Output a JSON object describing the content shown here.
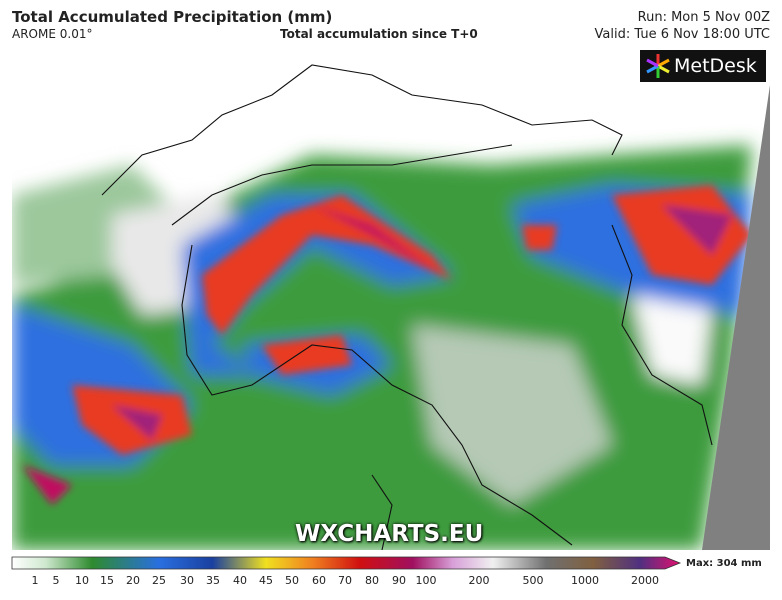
{
  "header": {
    "title": "Total Accumulated Precipitation (mm)",
    "model": "AROME 0.01°",
    "subtitle": "Total accumulation since T+0",
    "run": "Run: Mon 5 Nov 00Z",
    "valid": "Valid: Tue 6 Nov 18:00 UTC"
  },
  "logo": "MetDesk",
  "watermark": "WXCHARTS.EU",
  "legend": {
    "labels": [
      "1",
      "5",
      "10",
      "15",
      "20",
      "25",
      "30",
      "35",
      "40",
      "45",
      "50",
      "60",
      "70",
      "80",
      "90",
      "100",
      "200",
      "500",
      "1000",
      "2000"
    ],
    "max": "Max: 304 mm"
  }
}
